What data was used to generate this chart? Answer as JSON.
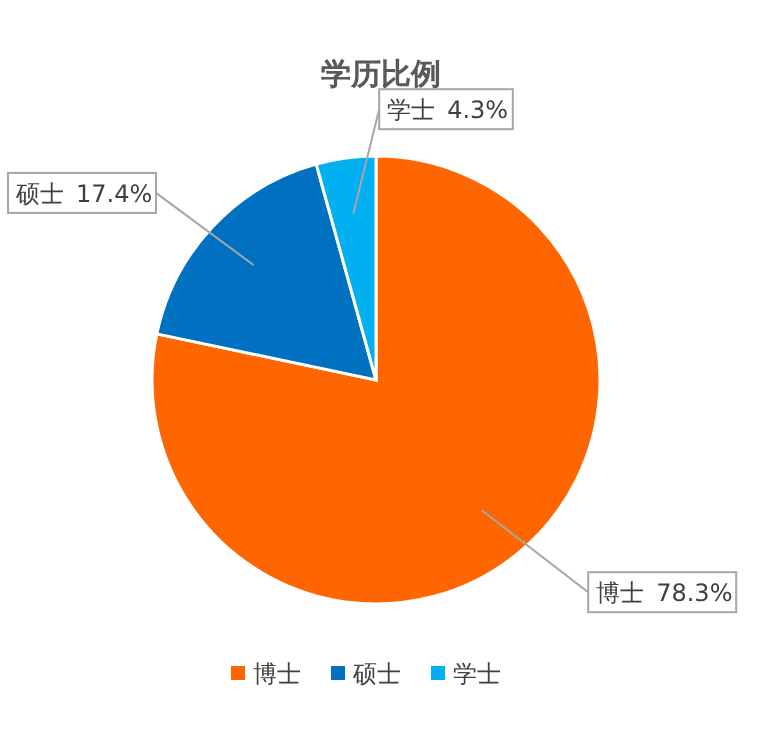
{
  "chart_data": {
    "type": "pie",
    "title": "学历比例",
    "categories": [
      "博士",
      "硕士",
      "学士"
    ],
    "values": [
      78.3,
      17.4,
      4.3
    ],
    "colors": [
      "#ff6600",
      "#0070c0",
      "#00b0f0"
    ],
    "value_labels": [
      "78.3%",
      "17.4%",
      "4.3%"
    ],
    "legend": "bottom"
  }
}
